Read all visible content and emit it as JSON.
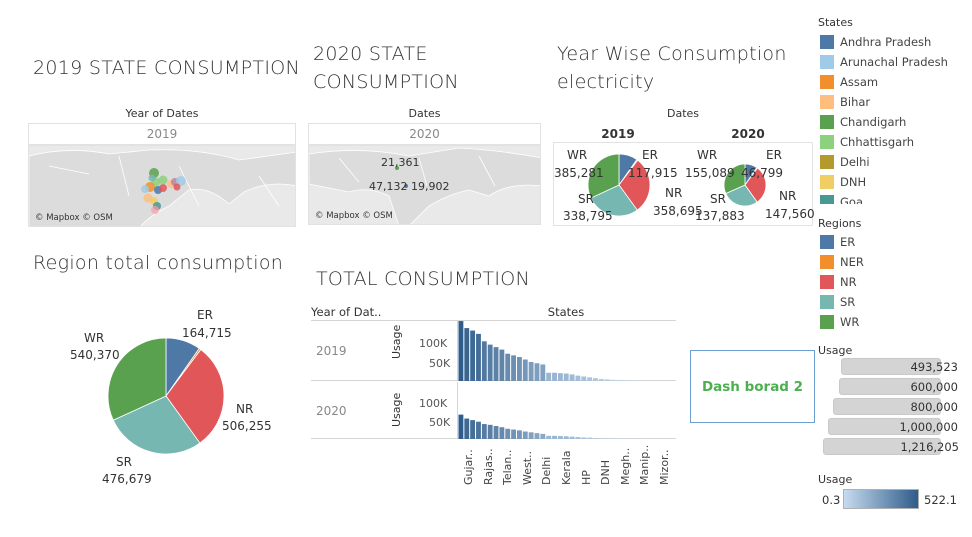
{
  "titles": {
    "state_2019": "2019 STATE CONSUMPTION",
    "state_2020_line1": "2020  STATE",
    "state_2020_line2": "CONSUMPTION",
    "year_wise_line1": "Year Wise Consumption",
    "year_wise_line2": "electricity",
    "region_total": "Region  total consumption",
    "total_consumption": "TOTAL CONSUMPTION"
  },
  "map2019": {
    "header": "Year of Dates",
    "year": "2019",
    "credit": "© Mapbox © OSM"
  },
  "map2020": {
    "header": "Dates",
    "year": "2020",
    "credit": "© Mapbox © OSM",
    "label_top": "21,361",
    "label_left": "47,132",
    "label_right": "19,902"
  },
  "year_wise": {
    "header": "Dates",
    "year_2019": "2019",
    "year_2020": "2020",
    "p2019": {
      "wr": "WR",
      "wr_val": "385,281",
      "er": "ER",
      "er_val": "117,915",
      "nr": "NR",
      "nr_val": "358,695",
      "sr": "SR",
      "sr_val": "338,795"
    },
    "p2020": {
      "wr": "WR",
      "wr_val": "155,089",
      "er": "ER",
      "er_val": "46,799",
      "nr": "NR",
      "nr_val": "147,560",
      "sr": "SR",
      "sr_val": "137,883"
    }
  },
  "region_pie": {
    "er": "ER",
    "er_val": "164,715",
    "wr": "WR",
    "wr_val": "540,370",
    "nr": "NR",
    "nr_val": "506,255",
    "sr": "SR",
    "sr_val": "476,679"
  },
  "total": {
    "col_year": "Year of Dat..",
    "col_states": "States",
    "row_2019": "2019",
    "row_2020": "2020",
    "axis": "Usage",
    "tick_100k": "100K",
    "tick_50k": "50K",
    "x_labels": [
      "Gujar..",
      "Rajas..",
      "Telan..",
      "West..",
      "Delhi",
      "Kerala",
      "HP",
      "DNH",
      "Megh..",
      "Manip..",
      "Mizor.."
    ]
  },
  "legend": {
    "states_title": "States",
    "states": [
      {
        "label": "Andhra Pradesh",
        "color": "#4e79a7"
      },
      {
        "label": "Arunachal Pradesh",
        "color": "#a0cbe8"
      },
      {
        "label": "Assam",
        "color": "#f28e2b"
      },
      {
        "label": "Bihar",
        "color": "#ffbe7d"
      },
      {
        "label": "Chandigarh",
        "color": "#59a14f"
      },
      {
        "label": "Chhattisgarh",
        "color": "#8cd17d"
      },
      {
        "label": "Delhi",
        "color": "#b6992d"
      },
      {
        "label": "DNH",
        "color": "#f1ce63"
      },
      {
        "label": "Goa",
        "color": "#499894"
      }
    ],
    "regions_title": "Regions",
    "regions": [
      {
        "label": "ER",
        "color": "#4e79a7"
      },
      {
        "label": "NER",
        "color": "#f28e2b"
      },
      {
        "label": "NR",
        "color": "#e15759"
      },
      {
        "label": "SR",
        "color": "#76b7b2"
      },
      {
        "label": "WR",
        "color": "#59a14f"
      }
    ],
    "usage_title": "Usage",
    "usage_values": [
      "493,523",
      "600,000",
      "800,000",
      "1,000,000",
      "1,216,205"
    ],
    "usage_scale_title": "Usage",
    "scale_min": "0.3",
    "scale_max": "522.1"
  },
  "dash_button": "Dash borad 2",
  "chart_data": [
    {
      "type": "pie",
      "title": "Region  total consumption",
      "categories": [
        "ER",
        "NER",
        "NR",
        "SR",
        "WR"
      ],
      "values": [
        164715,
        9000,
        506255,
        476679,
        540370
      ],
      "colors": [
        "#4e79a7",
        "#f28e2b",
        "#e15759",
        "#76b7b2",
        "#59a14f"
      ]
    },
    {
      "type": "pie",
      "title": "2019",
      "categories": [
        "ER",
        "NER",
        "NR",
        "SR",
        "WR"
      ],
      "values": [
        117915,
        6000,
        358695,
        338795,
        385281
      ],
      "colors": [
        "#4e79a7",
        "#f28e2b",
        "#e15759",
        "#76b7b2",
        "#59a14f"
      ]
    },
    {
      "type": "pie",
      "title": "2020",
      "categories": [
        "ER",
        "NER",
        "NR",
        "SR",
        "WR"
      ],
      "values": [
        46799,
        2500,
        147560,
        137883,
        155089
      ],
      "colors": [
        "#4e79a7",
        "#f28e2b",
        "#e15759",
        "#76b7b2",
        "#59a14f"
      ]
    },
    {
      "type": "bar",
      "title": "TOTAL CONSUMPTION 2019",
      "ylabel": "Usage",
      "ylim": [
        0,
        150000
      ],
      "values": [
        145000,
        128000,
        122000,
        114000,
        96000,
        88000,
        82000,
        76000,
        66000,
        62000,
        58000,
        52000,
        46000,
        43000,
        40000,
        20000,
        20000,
        19000,
        18000,
        16000,
        13000,
        11000,
        9000,
        7000,
        5000,
        4000,
        3000,
        2500,
        2000,
        1500,
        1000,
        800,
        500
      ]
    },
    {
      "type": "bar",
      "title": "TOTAL CONSUMPTION 2020",
      "ylabel": "Usage",
      "ylim": [
        0,
        150000
      ],
      "values": [
        62000,
        52000,
        48000,
        44000,
        38000,
        36000,
        33000,
        30000,
        26000,
        24000,
        22000,
        19000,
        17000,
        15000,
        13000,
        8000,
        8000,
        7500,
        7000,
        6000,
        5000,
        4000,
        3500,
        2600,
        2000,
        1600,
        1200,
        1000,
        800,
        600,
        400,
        300,
        200
      ]
    }
  ]
}
